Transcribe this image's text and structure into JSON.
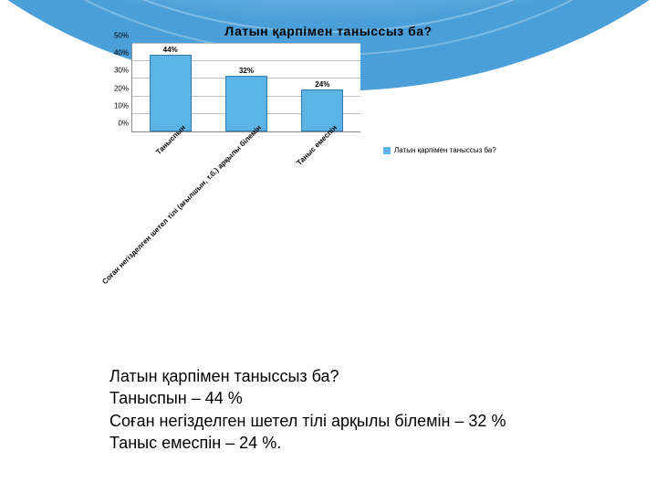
{
  "title": "Латын қарпімен таныссыз ба?",
  "chart": {
    "type": "bar",
    "categories": [
      "Таныспын",
      "Соған негізделген шетел тілі (ағылшын, т.б.) арқылы білемін",
      "Таныс емеспін"
    ],
    "values": [
      44,
      32,
      24
    ],
    "value_labels": [
      "44%",
      "32%",
      "24%"
    ],
    "bar_color": "#5bb4e5",
    "bar_border": "#2e7cb0",
    "ymax": 50,
    "ytick_step": 10,
    "yticks": [
      "0%",
      "10%",
      "20%",
      "30%",
      "40%",
      "50%"
    ],
    "grid_color": "#bfbfbf",
    "background": "#ffffff",
    "legend_label": "Латын қарпімен таныссыз ба?",
    "title_fontsize": 14,
    "tick_fontsize": 8
  },
  "summary": {
    "line1": "Латын қарпімен таныссыз ба?",
    "line2": "Таныспын – 44 %",
    "line3": "Соған негізделген шетел тілі арқылы білемін – 32 %",
    "line4": "Таныс емеспін – 24 %."
  },
  "decor": {
    "arc_color_light": "#cfe7f7",
    "arc_color_dark": "#4a9fd8"
  }
}
